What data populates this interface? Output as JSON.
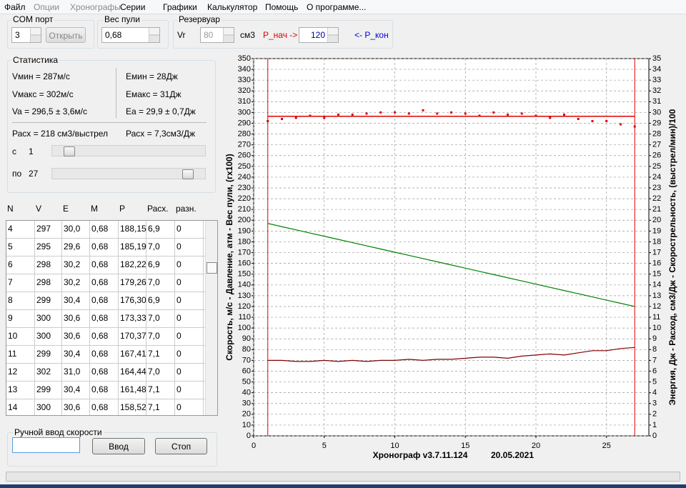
{
  "menu": [
    "Файл",
    "Опции",
    "Хронографы",
    "Серии",
    "Графики",
    "Калькулятор",
    "Помощь",
    "О программе..."
  ],
  "com_port": {
    "title": "COM порт",
    "value": "3",
    "button": "Открыть"
  },
  "bullet_weight": {
    "title": "Вес пули",
    "value": "0,68"
  },
  "reservoir": {
    "title": "Резервуар",
    "vr_label": "Vr",
    "vr_value": "80",
    "vr_unit": "см3",
    "p_start_label": "P_нач ->",
    "p_value": "120",
    "p_end_label": "<- P_кон"
  },
  "statistics": {
    "title": "Статистика",
    "v_min": "Vмин = 287м/с",
    "v_max": "Vмакс = 302м/с",
    "v_avg": "Va = 296,5 ± 3,6м/с",
    "e_min": "Eмин = 28Дж",
    "e_max": "Eмакс = 31Дж",
    "e_avg": "Ea = 29,9 ± 0,7Дж",
    "consumption_shot": "Расх = 218 см3/выстрел",
    "consumption_joule": "Расх = 7,3см3/Дж",
    "from_label": "с",
    "from_value": "1",
    "to_label": "по",
    "to_value": "27"
  },
  "table": {
    "headers": [
      "N",
      "V",
      "E",
      "M",
      "P",
      "Расх.",
      "разн."
    ],
    "rows": [
      [
        "4",
        "297",
        "30,0",
        "0,68",
        "188,15",
        "6,9",
        "0"
      ],
      [
        "5",
        "295",
        "29,6",
        "0,68",
        "185,19",
        "7,0",
        "0"
      ],
      [
        "6",
        "298",
        "30,2",
        "0,68",
        "182,22",
        "6,9",
        "0"
      ],
      [
        "7",
        "298",
        "30,2",
        "0,68",
        "179,26",
        "7,0",
        "0"
      ],
      [
        "8",
        "299",
        "30,4",
        "0,68",
        "176,30",
        "6,9",
        "0"
      ],
      [
        "9",
        "300",
        "30,6",
        "0,68",
        "173,33",
        "7,0",
        "0"
      ],
      [
        "10",
        "300",
        "30,6",
        "0,68",
        "170,37",
        "7,0",
        "0"
      ],
      [
        "11",
        "299",
        "30,4",
        "0,68",
        "167,41",
        "7,1",
        "0"
      ],
      [
        "12",
        "302",
        "31,0",
        "0,68",
        "164,44",
        "7,0",
        "0"
      ],
      [
        "13",
        "299",
        "30,4",
        "0,68",
        "161,48",
        "7,1",
        "0"
      ],
      [
        "14",
        "300",
        "30,6",
        "0,68",
        "158,52",
        "7,1",
        "0"
      ]
    ]
  },
  "manual_input": {
    "title": "Ручной ввод скорости",
    "enter_button": "Ввод",
    "stop_button": "Стоп"
  },
  "chart_data": {
    "type": "line",
    "ylabel": "Скорость, м/с  - Давление, атм - Вес пули, (гх100)",
    "y2label": "Энергия, Дж - Расход, см3/Дж - Скорострельность, (выстрел/мин)/100",
    "footer": "Хронограф v3.7.11.124",
    "date": "20.05.2021",
    "x": [
      1,
      2,
      3,
      4,
      5,
      6,
      7,
      8,
      9,
      10,
      11,
      12,
      13,
      14,
      15,
      16,
      17,
      18,
      19,
      20,
      21,
      22,
      23,
      24,
      25,
      26,
      27
    ],
    "series": [
      {
        "color": "#e00000",
        "style": "markers",
        "values": [
          292,
          294,
          295,
          297,
          295,
          298,
          298,
          299,
          300,
          300,
          299,
          302,
          299,
          300,
          299,
          297,
          300,
          298,
          299,
          297,
          295,
          298,
          294,
          292,
          292,
          289,
          287
        ]
      },
      {
        "color": "#008000",
        "style": "line",
        "values": [
          197.04,
          194.07,
          191.11,
          188.15,
          185.19,
          182.22,
          179.26,
          176.3,
          173.33,
          170.37,
          167.41,
          164.44,
          161.48,
          158.52,
          155.56,
          152.59,
          149.63,
          146.67,
          143.7,
          140.74,
          137.78,
          134.81,
          131.85,
          128.89,
          125.93,
          122.96,
          120
        ]
      },
      {
        "color": "#800000",
        "style": "line",
        "axis": "y2",
        "values": [
          7.0,
          7.0,
          6.9,
          6.9,
          7.0,
          6.9,
          7.0,
          6.9,
          7.0,
          7.0,
          7.1,
          7.0,
          7.1,
          7.1,
          7.2,
          7.3,
          7.3,
          7.2,
          7.4,
          7.5,
          7.6,
          7.5,
          7.7,
          7.9,
          7.9,
          8.1,
          8.2
        ]
      }
    ],
    "mean_line": {
      "value": 296.5,
      "color": "#e00000"
    },
    "range_lines": {
      "values": [
        1,
        27
      ],
      "color": "#e00000"
    },
    "xlim": [
      0,
      28
    ],
    "xticks": [
      0,
      5,
      10,
      15,
      20,
      25
    ],
    "ylim": [
      0,
      350
    ],
    "yticks": [
      0,
      10,
      20,
      30,
      40,
      50,
      60,
      70,
      80,
      90,
      100,
      110,
      120,
      130,
      140,
      150,
      160,
      170,
      180,
      190,
      200,
      210,
      220,
      230,
      240,
      250,
      260,
      270,
      280,
      290,
      300,
      310,
      320,
      330,
      340,
      350
    ],
    "y2lim": [
      0,
      35
    ],
    "y2ticks": [
      0,
      1,
      2,
      3,
      4,
      5,
      6,
      7,
      8,
      9,
      10,
      11,
      12,
      13,
      14,
      15,
      16,
      17,
      18,
      19,
      20,
      21,
      22,
      23,
      24,
      25,
      26,
      27,
      28,
      29,
      30,
      31,
      32,
      33,
      34,
      35
    ],
    "grid": true
  }
}
